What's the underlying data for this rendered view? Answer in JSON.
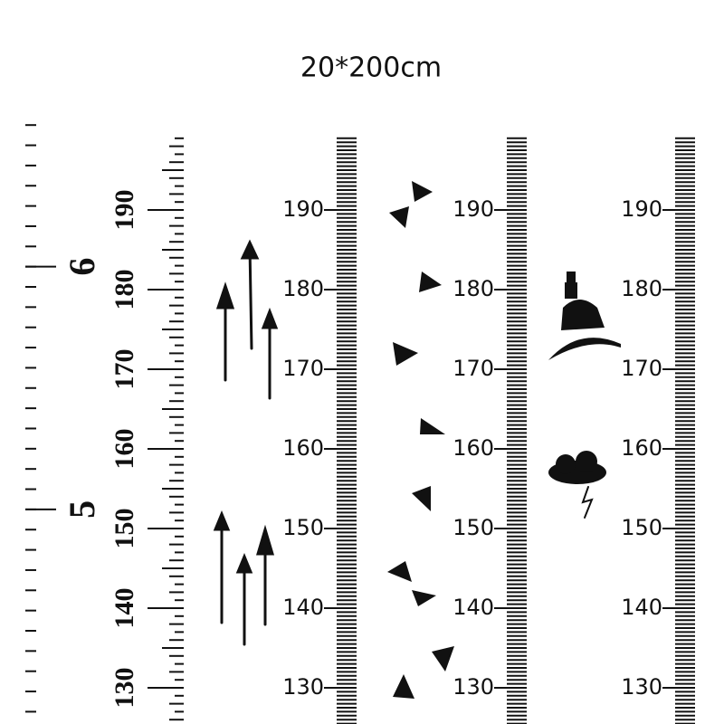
{
  "title": "20*200cm",
  "rulers": [
    {
      "labels": [
        190,
        180,
        170,
        160,
        150,
        140,
        130
      ],
      "feet": [
        6,
        5
      ]
    },
    {
      "labels": [
        190,
        180,
        170,
        160,
        150,
        140,
        130
      ]
    },
    {
      "labels": [
        190,
        180,
        170,
        160,
        150,
        140,
        130
      ]
    },
    {
      "labels": [
        190,
        180,
        170,
        160,
        150,
        140,
        130
      ]
    }
  ]
}
